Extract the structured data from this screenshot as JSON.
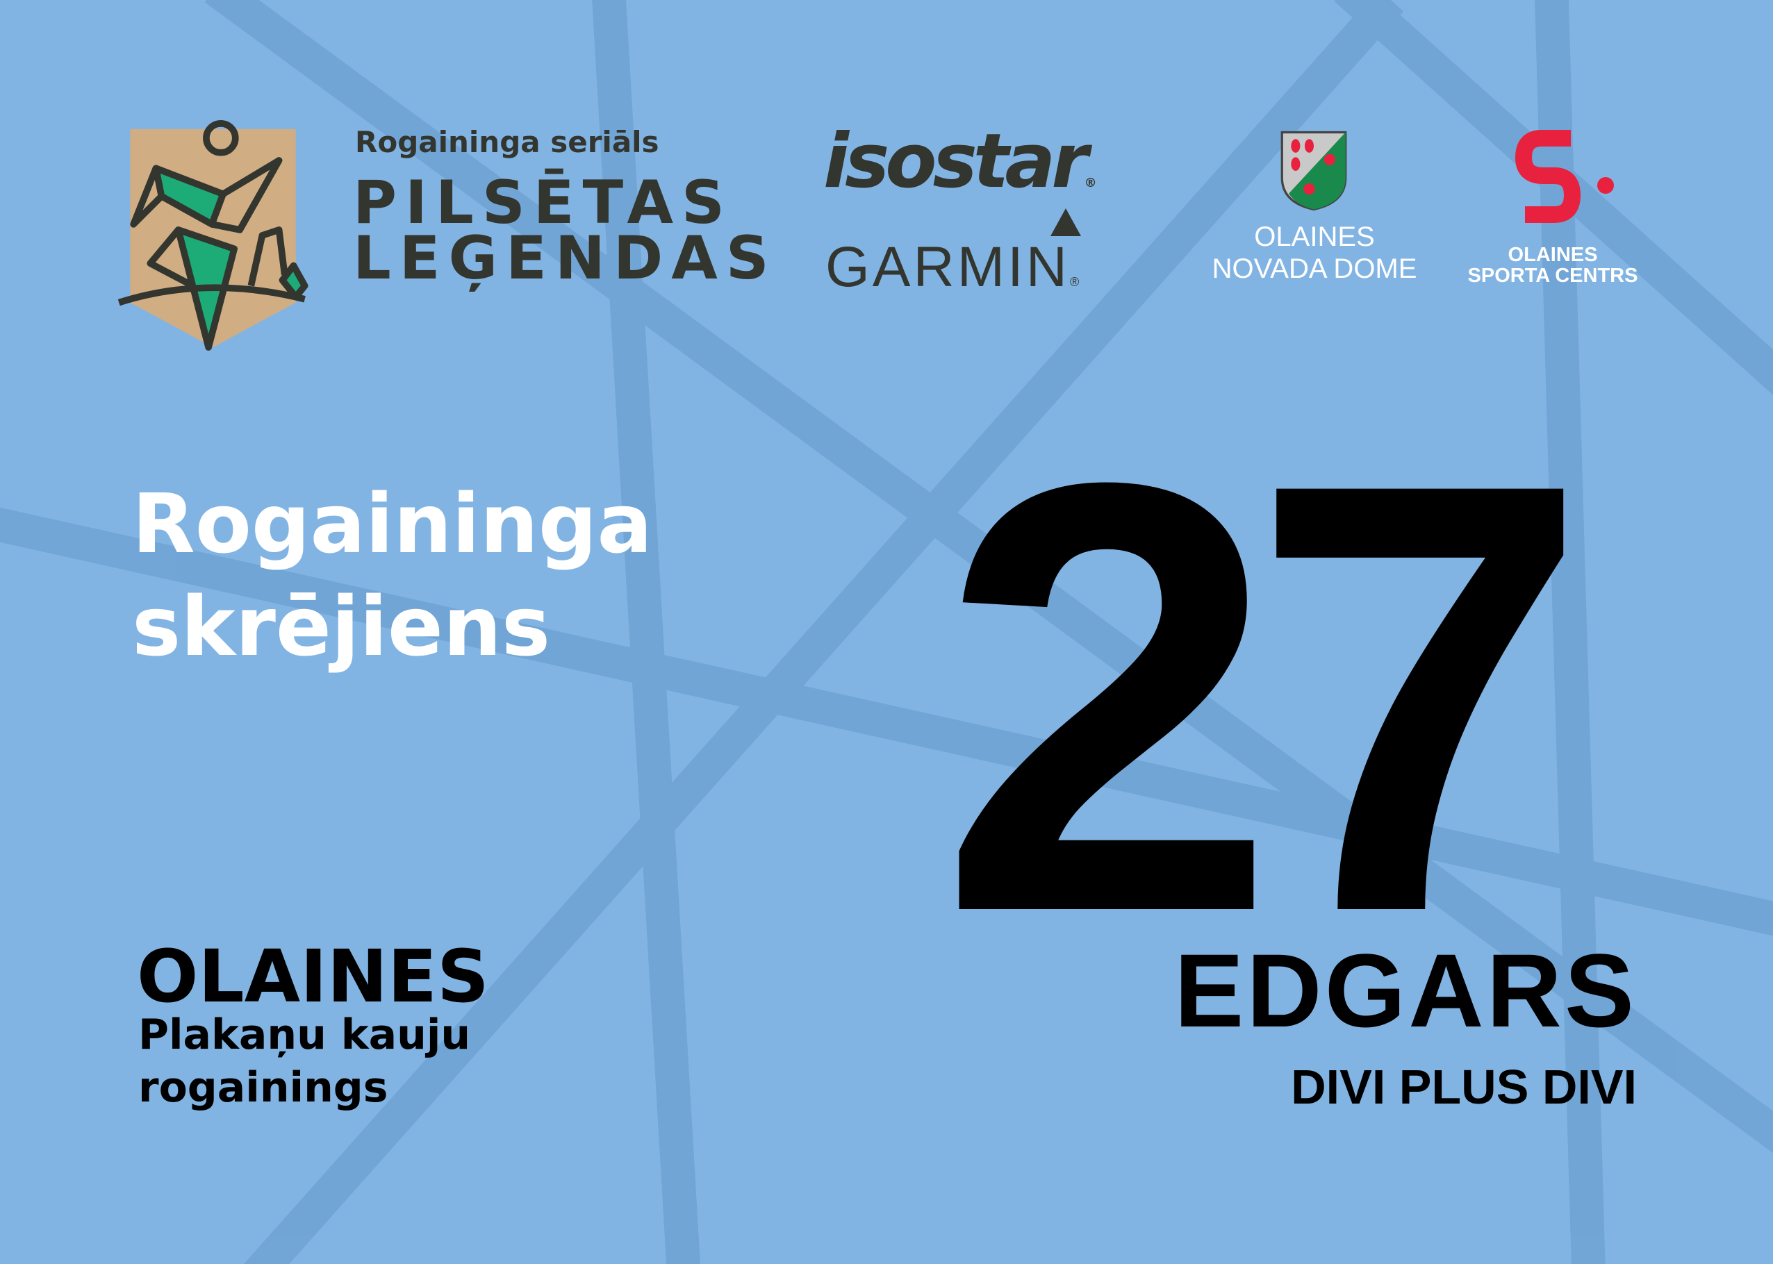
{
  "colors": {
    "background": "#82b4e3",
    "stripes": "#6fa3d3",
    "logo_dark": "#33352f",
    "logo_green": "#1dab77",
    "logo_tan": "#d0ad82",
    "accent_red": "#e8213e"
  },
  "header": {
    "series_logo": {
      "subtitle": "Rogaininga seriāls",
      "title_line1": "PILSĒTAS",
      "title_line2": "LEĢENDAS"
    },
    "sponsors": {
      "isostar": "isostar",
      "garmin": "GARMIN",
      "registered_mark": "®",
      "dome_line1": "OLAINES",
      "dome_line2": "NOVADA DOME",
      "sports_line1": "OLAINES",
      "sports_line2": "SPORTA CENTRS"
    }
  },
  "event": {
    "line1": "Rogaininga",
    "line2": "skrējiens"
  },
  "bib": {
    "number": "27",
    "name": "EDGARS",
    "team": "DIVI PLUS DIVI"
  },
  "location": {
    "city": "OLAINES",
    "line1": "Plakaņu kauju",
    "line2": "rogainings"
  }
}
